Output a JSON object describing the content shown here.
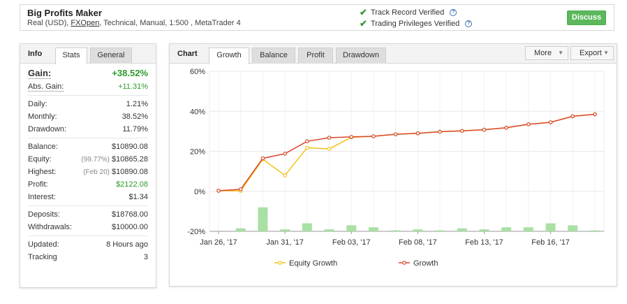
{
  "header": {
    "system_name": "Big Profits Maker",
    "meta_prefix": "Real (USD), ",
    "broker": "FXOpen",
    "meta_suffix": ", Technical, Manual, 1:500 , MetaTrader 4",
    "verif_track": "Track Record Verified",
    "verif_priv": "Trading Privileges Verified",
    "discuss_label": "Discuss"
  },
  "info_panel": {
    "title": "Info",
    "tabs": [
      "Stats",
      "General"
    ],
    "gain": {
      "label": "Gain:",
      "value": "+38.52%"
    },
    "abs_gain": {
      "label": "Abs. Gain:",
      "value": "+11.31%"
    },
    "daily": {
      "label": "Daily:",
      "value": "1.21%"
    },
    "monthly": {
      "label": "Monthly:",
      "value": "38.52%"
    },
    "drawdown": {
      "label": "Drawdown:",
      "value": "11.79%"
    },
    "balance": {
      "label": "Balance:",
      "value": "$10890.08"
    },
    "equity": {
      "label": "Equity:",
      "note": "(99.77%)",
      "value": "$10865.28"
    },
    "highest": {
      "label": "Highest:",
      "note": "(Feb 20)",
      "value": "$10890.08"
    },
    "profit": {
      "label": "Profit:",
      "value": "$2122.08"
    },
    "interest": {
      "label": "Interest:",
      "value": "$1.34"
    },
    "deposits": {
      "label": "Deposits:",
      "value": "$18768.00"
    },
    "withdrawals": {
      "label": "Withdrawals:",
      "value": "$10000.00"
    },
    "updated": {
      "label": "Updated:",
      "value": "8 Hours ago"
    },
    "tracking": {
      "label": "Tracking",
      "value": "3"
    }
  },
  "chart_panel": {
    "title": "Chart",
    "tabs": [
      "Growth",
      "Balance",
      "Profit",
      "Drawdown"
    ],
    "more_label": "More",
    "export_label": "Export"
  },
  "colors": {
    "growth": "#d9472b",
    "equity": "#f2c21b",
    "bars": "#a9e0a4",
    "accent_green": "#2c9a2c"
  },
  "chart_data": {
    "type": "line",
    "ylim": [
      -20,
      60
    ],
    "yticks": [
      60,
      40,
      20,
      0,
      -20
    ],
    "ytick_labels": [
      "60%",
      "40%",
      "20%",
      "0%",
      "-20%"
    ],
    "xtick_labels": [
      "Jan 26, '17",
      "Jan 31, '17",
      "Feb 03, '17",
      "Feb 08, '17",
      "Feb 13, '17",
      "Feb 16, '17"
    ],
    "xtick_index": [
      0,
      3,
      6,
      9,
      12,
      15
    ],
    "series": [
      {
        "name": "Growth",
        "values": [
          0.3,
          1.0,
          16.5,
          18.8,
          25.0,
          26.8,
          27.2,
          27.5,
          28.5,
          29.0,
          29.8,
          30.2,
          30.8,
          31.8,
          33.5,
          34.5,
          37.5,
          38.5
        ]
      },
      {
        "name": "Equity Growth",
        "values": [
          0.3,
          0.2,
          16.0,
          8.0,
          21.8,
          21.2,
          27.0,
          27.5,
          28.5,
          29.0,
          29.8,
          30.2,
          30.8,
          31.8,
          33.5,
          34.5,
          37.5,
          38.5
        ]
      }
    ],
    "bars": [
      0,
      1.5,
      12,
      1,
      4,
      1,
      3,
      2,
      0.5,
      1,
      0.5,
      1.5,
      1,
      2,
      2,
      4,
      3,
      0.5
    ],
    "grid": true,
    "legend_position": "bottom"
  }
}
